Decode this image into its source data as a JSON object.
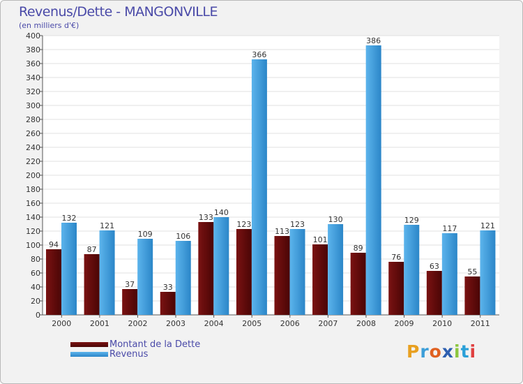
{
  "chart_data": {
    "type": "bar",
    "title": "Revenus/Dette - MANGONVILLE",
    "subtitle": "(en milliers d'€)",
    "categories": [
      "2000",
      "2001",
      "2002",
      "2003",
      "2004",
      "2005",
      "2006",
      "2007",
      "2008",
      "2009",
      "2010",
      "2011"
    ],
    "series": [
      {
        "name": "Montant de la Dette",
        "color": "#6b0a0a",
        "values": [
          94,
          87,
          37,
          33,
          133,
          123,
          113,
          101,
          89,
          76,
          63,
          55
        ]
      },
      {
        "name": "Revenus",
        "color": "#3d9ee0",
        "values": [
          132,
          121,
          109,
          106,
          140,
          366,
          123,
          130,
          386,
          129,
          117,
          121
        ]
      }
    ],
    "ylim": [
      0,
      400
    ],
    "ytick_step": 20,
    "grid": true,
    "xlabel": "",
    "ylabel": ""
  },
  "logo": {
    "letters": [
      "P",
      "r",
      "o",
      "x",
      "i",
      "t",
      "i"
    ],
    "colors": [
      "#e8a020",
      "#3c9ed8",
      "#e06020",
      "#2d5fb0",
      "#8cc63f",
      "#2aa0d8",
      "#e04040"
    ]
  }
}
